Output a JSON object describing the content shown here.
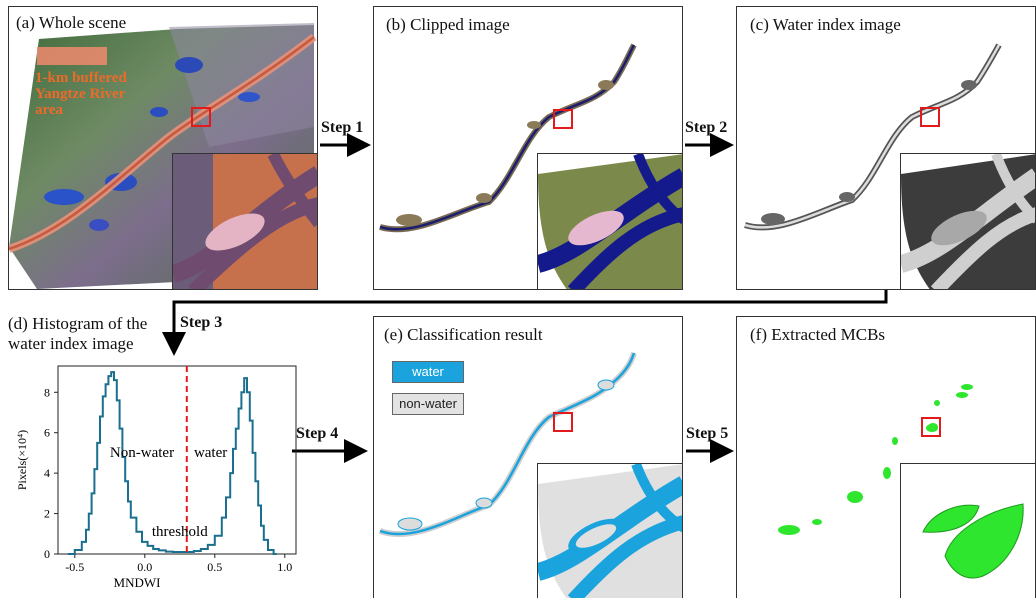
{
  "panels": {
    "a": {
      "title": "(a) Whole scene",
      "overlay": [
        "1-km buffered",
        "Yangtze River",
        "area"
      ]
    },
    "b": {
      "title": "(b) Clipped image"
    },
    "c": {
      "title": "(c) Water index image"
    },
    "d": {
      "title_line1": "(d) Histogram of the",
      "title_line2": "water index image"
    },
    "e": {
      "title": "(e)  Classification result",
      "legend": [
        {
          "label": "water",
          "color": "#1aa3dd"
        },
        {
          "label": "non-water",
          "color": "#e3e3e3"
        }
      ]
    },
    "f": {
      "title": "(f) Extracted MCBs"
    }
  },
  "steps": [
    "Step 1",
    "Step 2",
    "Step 3",
    "Step 4",
    "Step 5"
  ],
  "colors": {
    "water": "#1aa3dd",
    "nonwater": "#e3e3e3",
    "mcb": "#2fe62f",
    "highlight": "#e31a1c",
    "river": "#d96a4a",
    "histogram": "#1a6e8e",
    "threshold": "#e31a1c"
  },
  "chart_data": {
    "type": "line",
    "xlabel": "MNDWI",
    "ylabel": "Pixels(×10⁴)",
    "xlim": [
      -0.62,
      1.08
    ],
    "ylim": [
      0,
      9.3
    ],
    "xticks": [
      -0.5,
      0.0,
      0.5,
      1.0
    ],
    "xtick_labels": [
      "-0.5",
      "0.0",
      "0.5",
      "1.0"
    ],
    "yticks": [
      0,
      2,
      4,
      6,
      8
    ],
    "threshold_x": 0.3,
    "annotations": {
      "left": "Non-water",
      "right": "water",
      "threshold": "threshold"
    },
    "series": [
      {
        "x": [
          -0.55,
          -0.5,
          -0.45,
          -0.42,
          -0.4,
          -0.38,
          -0.36,
          -0.34,
          -0.32,
          -0.3,
          -0.28,
          -0.26,
          -0.24,
          -0.22,
          -0.2,
          -0.18,
          -0.16,
          -0.14,
          -0.12,
          -0.1,
          -0.06,
          -0.02,
          0.02,
          0.06,
          0.1,
          0.15,
          0.2,
          0.25,
          0.3,
          0.35,
          0.4,
          0.45,
          0.5,
          0.55,
          0.58,
          0.61,
          0.63,
          0.65,
          0.67,
          0.69,
          0.71,
          0.73,
          0.75,
          0.77,
          0.79,
          0.81,
          0.83,
          0.85,
          0.88,
          0.92
        ],
        "y": [
          0.0,
          0.2,
          0.6,
          1.2,
          2.0,
          3.0,
          4.2,
          5.5,
          6.8,
          7.8,
          8.4,
          8.8,
          9.0,
          8.6,
          7.6,
          6.2,
          4.8,
          3.6,
          2.6,
          1.8,
          1.1,
          0.6,
          0.4,
          0.25,
          0.18,
          0.12,
          0.1,
          0.1,
          0.1,
          0.15,
          0.25,
          0.45,
          0.9,
          1.8,
          2.8,
          4.0,
          5.2,
          6.2,
          7.2,
          8.0,
          8.7,
          8.0,
          6.6,
          5.0,
          3.6,
          2.4,
          1.4,
          0.7,
          0.2,
          0.0
        ]
      }
    ]
  }
}
